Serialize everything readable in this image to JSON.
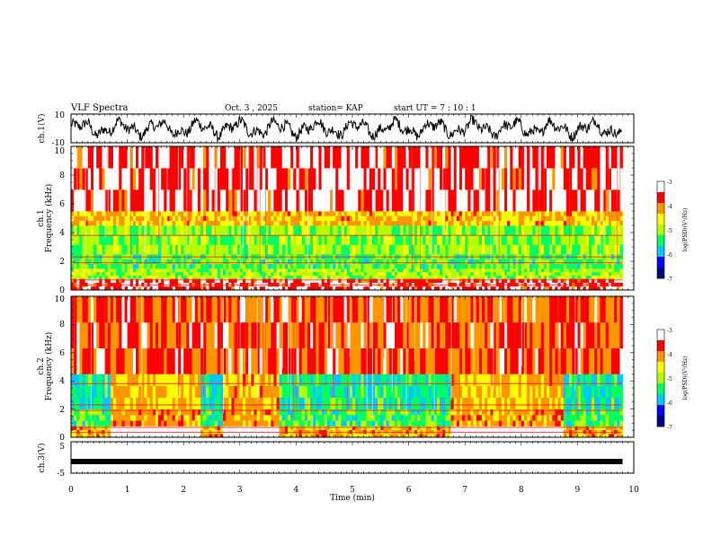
{
  "header": {
    "title": "VLF Spectra",
    "date": "Oct. 3 , 2025",
    "station": "station= KAP",
    "start": "start UT =  7 : 10 : 1"
  },
  "chart_data": [
    {
      "type": "line",
      "name": "ch1-waveform",
      "ylabel": "ch.1(V)",
      "ylim": [
        -10,
        10
      ],
      "yticks": [
        "10",
        "-10"
      ],
      "xlim": [
        0,
        10
      ]
    },
    {
      "type": "heatmap",
      "name": "ch1-spectrogram",
      "ylabel": "Frequency (kHz)",
      "channel_label": "ch.1",
      "ylim": [
        0,
        10
      ],
      "yticks": [
        "0",
        "2",
        "4",
        "6",
        "8",
        "10"
      ],
      "xlim": [
        0,
        9.8
      ],
      "colorbar": {
        "label": "log(PSD)(V²/Hz)",
        "range": [
          -7,
          -3
        ],
        "ticks": [
          "-3",
          "-4",
          "-5",
          "-6",
          "-7"
        ],
        "colors": [
          "#000080",
          "#0000ff",
          "#00c8ff",
          "#00ff60",
          "#b4ff00",
          "#ffff00",
          "#ff9600",
          "#ff0000",
          "#ffffff"
        ]
      },
      "bands_khz": [
        {
          "lo": 0.0,
          "hi": 0.8,
          "level": -3.5
        },
        {
          "lo": 0.8,
          "hi": 1.5,
          "level": -5.0
        },
        {
          "lo": 1.5,
          "hi": 2.5,
          "level": -5.3
        },
        {
          "lo": 2.5,
          "hi": 4.5,
          "level": -5.1
        },
        {
          "lo": 4.5,
          "hi": 5.5,
          "level": -4.3
        },
        {
          "lo": 5.5,
          "hi": 10.0,
          "level": -3.5
        }
      ]
    },
    {
      "type": "heatmap",
      "name": "ch2-spectrogram",
      "ylabel": "Frequency (kHz)",
      "channel_label": "ch.2",
      "ylim": [
        0,
        10
      ],
      "yticks": [
        "0",
        "2",
        "4",
        "6",
        "8",
        "10"
      ],
      "xlim": [
        0,
        9.8
      ],
      "colorbar": {
        "label": "log(PSD)(V²/Hz)",
        "range": [
          -7,
          -3
        ],
        "ticks": [
          "-3",
          "-4",
          "-5",
          "-6",
          "-7"
        ],
        "colors": [
          "#000080",
          "#0000ff",
          "#00c8ff",
          "#00ff60",
          "#b4ff00",
          "#ffff00",
          "#ff9600",
          "#ff0000",
          "#ffffff"
        ]
      },
      "quiet_intervals_min": [
        [
          0.0,
          0.7
        ],
        [
          2.3,
          2.7
        ],
        [
          3.7,
          6.75
        ],
        [
          8.75,
          9.8
        ]
      ],
      "bands_khz": [
        {
          "lo": 0.0,
          "hi": 0.8,
          "level": -4.2
        },
        {
          "lo": 0.8,
          "hi": 2.0,
          "level": -5.4
        },
        {
          "lo": 2.0,
          "hi": 4.5,
          "level": -5.6
        },
        {
          "lo": 4.5,
          "hi": 10.0,
          "level": -3.8
        }
      ]
    },
    {
      "type": "line",
      "name": "ch3-waveform",
      "ylabel": "ch.3(V)",
      "ylim": [
        -5,
        5
      ],
      "yticks": [
        "5",
        "-5"
      ],
      "xlim": [
        0,
        10
      ],
      "level": -1.3,
      "xlabel": "Time (min)",
      "xticks": [
        "0",
        "1",
        "2",
        "3",
        "4",
        "5",
        "6",
        "7",
        "8",
        "9",
        "10"
      ]
    }
  ]
}
